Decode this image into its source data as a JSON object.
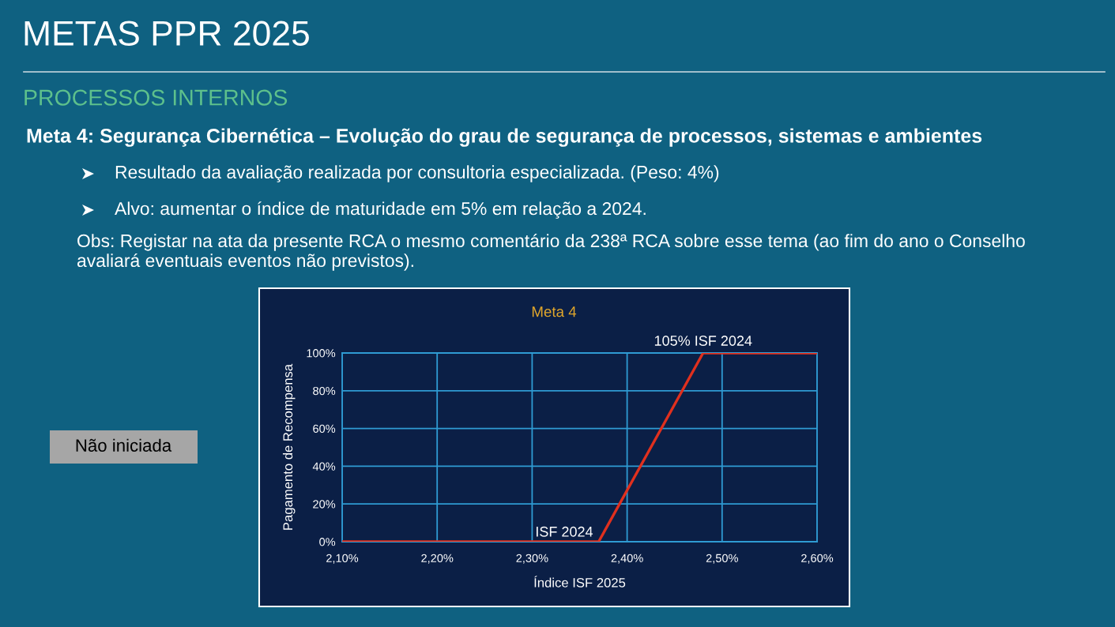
{
  "chart_data": {
    "type": "line",
    "title": "Meta 4",
    "xlabel": "Índice ISF 2025",
    "ylabel": "Pagamento de Recompensa",
    "x": [
      2.1,
      2.37,
      2.48,
      2.6
    ],
    "series": [
      {
        "color": "#e0301e",
        "values": [
          0,
          0,
          100,
          100
        ]
      }
    ],
    "xlim": [
      2.1,
      2.6
    ],
    "xticks": [
      {
        "value": 2.1,
        "label": "2,10%"
      },
      {
        "value": 2.2,
        "label": "2,20%"
      },
      {
        "value": 2.3,
        "label": "2,30%"
      },
      {
        "value": 2.4,
        "label": "2,40%"
      },
      {
        "value": 2.5,
        "label": "2,50%"
      },
      {
        "value": 2.6,
        "label": "2,60%"
      }
    ],
    "ylim": [
      0,
      100
    ],
    "yticks": [
      {
        "value": 0,
        "label": "0%"
      },
      {
        "value": 20,
        "label": "20%"
      },
      {
        "value": 40,
        "label": "40%"
      },
      {
        "value": 60,
        "label": "60%"
      },
      {
        "value": 80,
        "label": "80%"
      },
      {
        "value": 100,
        "label": "100%"
      }
    ],
    "grid": true,
    "annotations": [
      "METAS PPR 2025",
      "PROCESSOS INTERNOS",
      "Meta 4: Segurança Cibernética – Evolução do grau de segurança de processos, sistemas e ambientes",
      "Resultado da avaliação realizada por consultoria especializada. (Peso: 4%)",
      "Alvo: aumentar o índice de maturidade em 5% em relação a 2024.",
      "Obs: Registar na ata da presente RCA o mesmo comentário da 238ª RCA sobre esse tema (ao fim do ano o Conselho\navaliará eventuais eventos não previstos).",
      "Não iniciada",
      {
        "text": "ISF 2024",
        "x": 2.37,
        "y": 0
      },
      {
        "text": "105% ISF 2024",
        "x": 2.48,
        "y": 100
      }
    ]
  }
}
